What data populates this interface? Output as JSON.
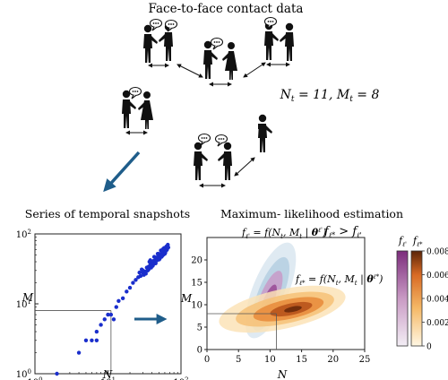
{
  "title": "Face-to-face contact data",
  "equation_top": "N_t = 11, M_t = 8",
  "panels": {
    "snapshots_title": "Series of temporal snapshots",
    "mle_title": "Maximum- likelihood estimation"
  },
  "formulas": {
    "f_lprime": "f_{ℓ'} = f(N_t, M_t | θ^{ℓ'})",
    "f_lstar": "f_{ℓ*} = f(N_t, M_t | θ^{ℓ*})",
    "compare": "f_{ℓ*} > f_{ℓ'}"
  },
  "scatter": {
    "xlabel": "N",
    "ylabel": "M",
    "xticks": [
      "10^0",
      "10^1",
      "10^2"
    ],
    "yticks": [
      "10^0",
      "10^1",
      "10^2"
    ],
    "reference": {
      "N": 11,
      "M": 8
    },
    "points": [
      [
        2,
        1
      ],
      [
        4,
        2
      ],
      [
        5,
        3
      ],
      [
        6,
        3
      ],
      [
        7,
        4
      ],
      [
        7,
        3
      ],
      [
        8,
        5
      ],
      [
        9,
        6
      ],
      [
        10,
        7
      ],
      [
        11,
        7
      ],
      [
        12,
        6
      ],
      [
        13,
        9
      ],
      [
        14,
        11
      ],
      [
        16,
        12
      ],
      [
        18,
        15
      ],
      [
        20,
        17
      ],
      [
        22,
        20
      ],
      [
        24,
        22
      ],
      [
        26,
        24
      ],
      [
        28,
        25
      ],
      [
        30,
        28
      ],
      [
        32,
        29
      ],
      [
        34,
        33
      ],
      [
        35,
        30
      ],
      [
        36,
        34
      ],
      [
        38,
        36
      ],
      [
        40,
        38
      ],
      [
        42,
        41
      ],
      [
        44,
        40
      ],
      [
        45,
        44
      ],
      [
        46,
        46
      ],
      [
        48,
        45
      ],
      [
        50,
        49
      ],
      [
        52,
        50
      ],
      [
        54,
        53
      ],
      [
        55,
        48
      ],
      [
        56,
        56
      ],
      [
        58,
        55
      ],
      [
        60,
        60
      ],
      [
        62,
        58
      ],
      [
        30,
        30
      ],
      [
        33,
        27
      ],
      [
        37,
        40
      ],
      [
        41,
        35
      ],
      [
        43,
        47
      ],
      [
        47,
        42
      ],
      [
        49,
        52
      ],
      [
        51,
        44
      ],
      [
        53,
        58
      ],
      [
        57,
        50
      ],
      [
        59,
        63
      ],
      [
        61,
        54
      ],
      [
        63,
        66
      ],
      [
        65,
        62
      ],
      [
        66,
        70
      ],
      [
        45,
        38
      ],
      [
        39,
        33
      ],
      [
        31,
        26
      ],
      [
        29,
        31
      ],
      [
        27,
        28
      ],
      [
        36,
        31
      ],
      [
        48,
        52
      ],
      [
        54,
        47
      ],
      [
        57,
        61
      ],
      [
        60,
        52
      ],
      [
        64,
        59
      ],
      [
        67,
        64
      ],
      [
        42,
        37
      ],
      [
        38,
        42
      ],
      [
        50,
        43
      ]
    ]
  },
  "density": {
    "xlabel": "N",
    "ylabel": "M",
    "xticks": [
      "0",
      "5",
      "10",
      "15",
      "20",
      "25"
    ],
    "yticks": [
      "0",
      "5",
      "10",
      "15",
      "20",
      "25"
    ],
    "reference": {
      "N": 11,
      "M": 8
    }
  },
  "colorbar": {
    "label_purple": "f_{ℓ'}",
    "label_orange": "f_{ℓ*}",
    "ticks": [
      "0",
      "0.002",
      "0.004",
      "0.006",
      "0.008"
    ]
  },
  "colors": {
    "arrow": "#1f5d8a",
    "points": "#1a2ecc",
    "purple": "#8a3a8a",
    "orange": "#c8612a"
  }
}
